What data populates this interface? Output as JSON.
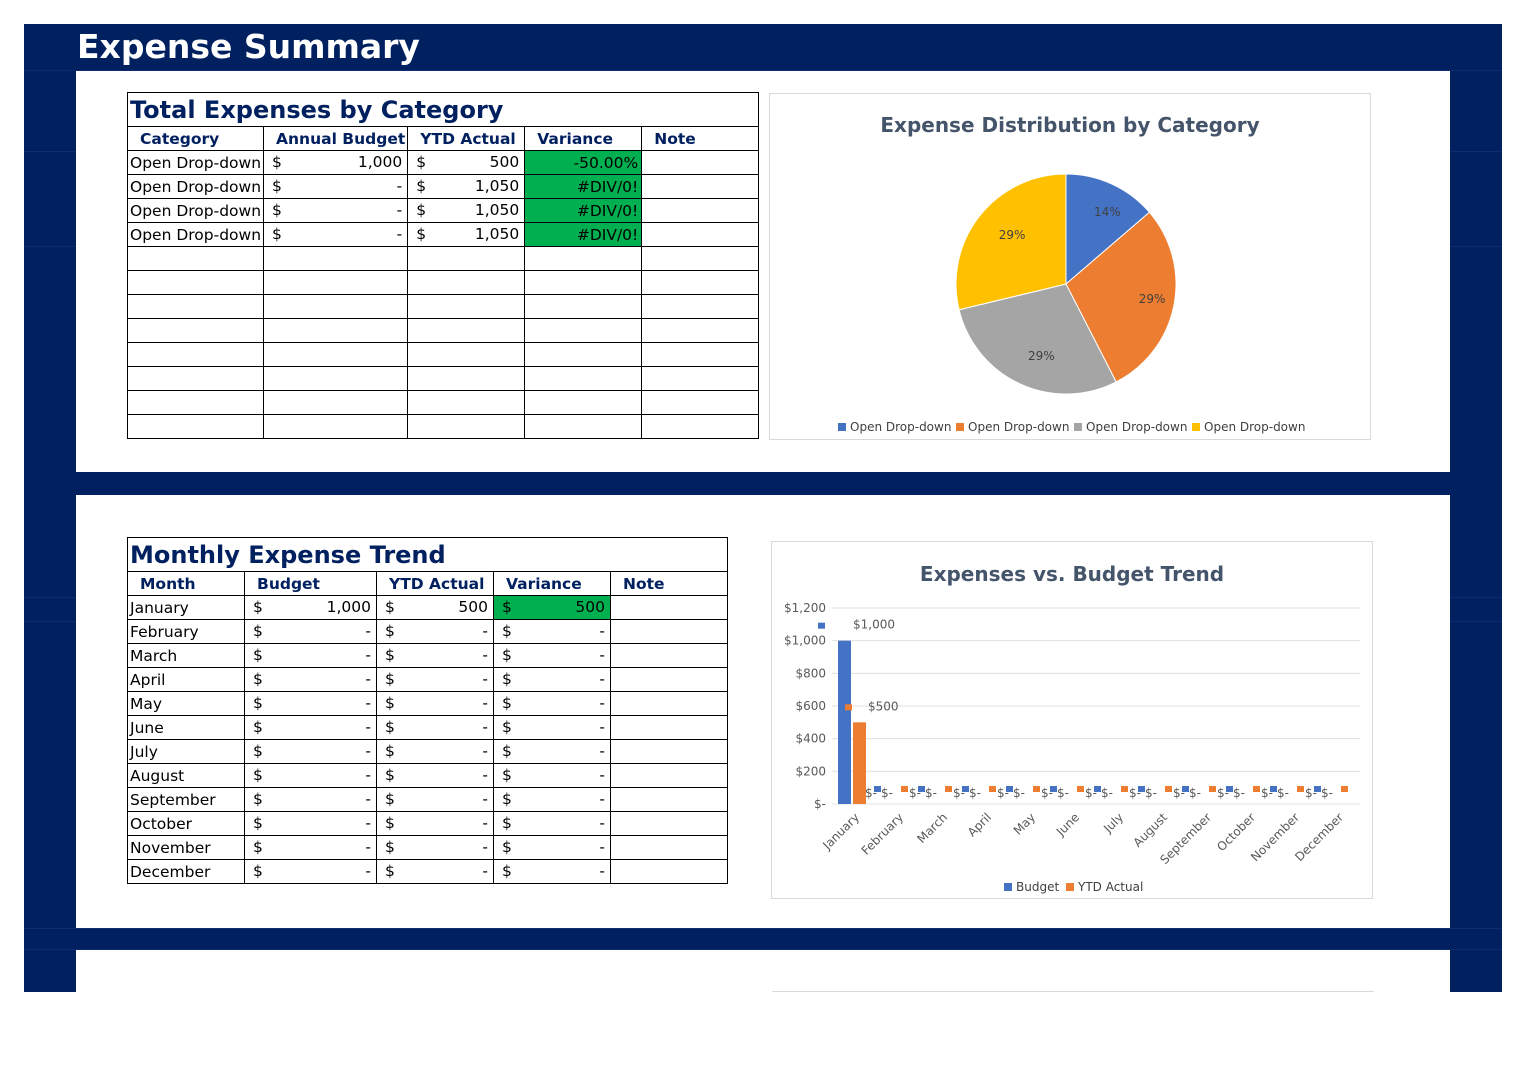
{
  "page": {
    "title": "Expense Summary"
  },
  "colors": {
    "frame": "#002060",
    "header_text": "#002060",
    "variance_fill": "#00b050",
    "blue": "#4472c4",
    "orange": "#ed7d31",
    "gray": "#a5a5a5",
    "gold": "#ffc000"
  },
  "category_table": {
    "title": "Total Expenses by Category",
    "headers": [
      "Category",
      "Annual Budget",
      "YTD Actual",
      "Variance",
      "Note"
    ],
    "rows": [
      {
        "category": "Open Drop-down",
        "budget_sym": "$",
        "budget": "1,000",
        "actual_sym": "$",
        "actual": "500",
        "variance": "-50.00%",
        "note": ""
      },
      {
        "category": "Open Drop-down",
        "budget_sym": "$",
        "budget": "-",
        "actual_sym": "$",
        "actual": "1,050",
        "variance": "#DIV/0!",
        "note": ""
      },
      {
        "category": "Open Drop-down",
        "budget_sym": "$",
        "budget": "-",
        "actual_sym": "$",
        "actual": "1,050",
        "variance": "#DIV/0!",
        "note": ""
      },
      {
        "category": "Open Drop-down",
        "budget_sym": "$",
        "budget": "-",
        "actual_sym": "$",
        "actual": "1,050",
        "variance": "#DIV/0!",
        "note": ""
      }
    ],
    "empty_rows": 8
  },
  "monthly_table": {
    "title": "Monthly Expense Trend",
    "headers": [
      "Month",
      "Budget",
      "YTD Actual",
      "Variance",
      "Note"
    ],
    "rows": [
      {
        "month": "January",
        "budget": "1,000",
        "actual": "500",
        "variance": "500"
      },
      {
        "month": "February",
        "budget": "-",
        "actual": "-",
        "variance": "-"
      },
      {
        "month": "March",
        "budget": "-",
        "actual": "-",
        "variance": "-"
      },
      {
        "month": "April",
        "budget": "-",
        "actual": "-",
        "variance": "-"
      },
      {
        "month": "May",
        "budget": "-",
        "actual": "-",
        "variance": "-"
      },
      {
        "month": "June",
        "budget": "-",
        "actual": "-",
        "variance": "-"
      },
      {
        "month": "July",
        "budget": "-",
        "actual": "-",
        "variance": "-"
      },
      {
        "month": "August",
        "budget": "-",
        "actual": "-",
        "variance": "-"
      },
      {
        "month": "September",
        "budget": "-",
        "actual": "-",
        "variance": "-"
      },
      {
        "month": "October",
        "budget": "-",
        "actual": "-",
        "variance": "-"
      },
      {
        "month": "November",
        "budget": "-",
        "actual": "-",
        "variance": "-"
      },
      {
        "month": "December",
        "budget": "-",
        "actual": "-",
        "variance": "-"
      }
    ],
    "currency_symbol": "$"
  },
  "chart_data": [
    {
      "type": "pie",
      "title": "Expense Distribution by Category",
      "categories": [
        "Open Drop-down",
        "Open Drop-down",
        "Open Drop-down",
        "Open Drop-down"
      ],
      "values": [
        500,
        1050,
        1050,
        1050
      ],
      "labels": [
        "14%",
        "29%",
        "29%",
        "29%"
      ],
      "colors": [
        "#4472c4",
        "#ed7d31",
        "#a5a5a5",
        "#ffc000"
      ],
      "legend": "bottom"
    },
    {
      "type": "bar",
      "title": "Expenses vs. Budget Trend",
      "categories": [
        "January",
        "February",
        "March",
        "April",
        "May",
        "June",
        "July",
        "August",
        "September",
        "October",
        "November",
        "December"
      ],
      "series": [
        {
          "name": "Budget",
          "values": [
            1000,
            0,
            0,
            0,
            0,
            0,
            0,
            0,
            0,
            0,
            0,
            0
          ],
          "color": "#4472c4"
        },
        {
          "name": "YTD Actual",
          "values": [
            500,
            0,
            0,
            0,
            0,
            0,
            0,
            0,
            0,
            0,
            0,
            0
          ],
          "color": "#ed7d31"
        }
      ],
      "data_labels": [
        [
          "$1,000",
          "$-",
          "$-",
          "$-",
          "$-",
          "$-",
          "$-",
          "$-",
          "$-",
          "$-",
          "$-",
          "$-"
        ],
        [
          "$500",
          "$-",
          "$-",
          "$-",
          "$-",
          "$-",
          "$-",
          "$-",
          "$-",
          "$-",
          "$-",
          "$-"
        ]
      ],
      "yticks": [
        "$-",
        "$200",
        "$400",
        "$600",
        "$800",
        "$1,000",
        "$1,200"
      ],
      "ylim": [
        0,
        1200
      ],
      "grid": true,
      "legend": "bottom"
    }
  ]
}
